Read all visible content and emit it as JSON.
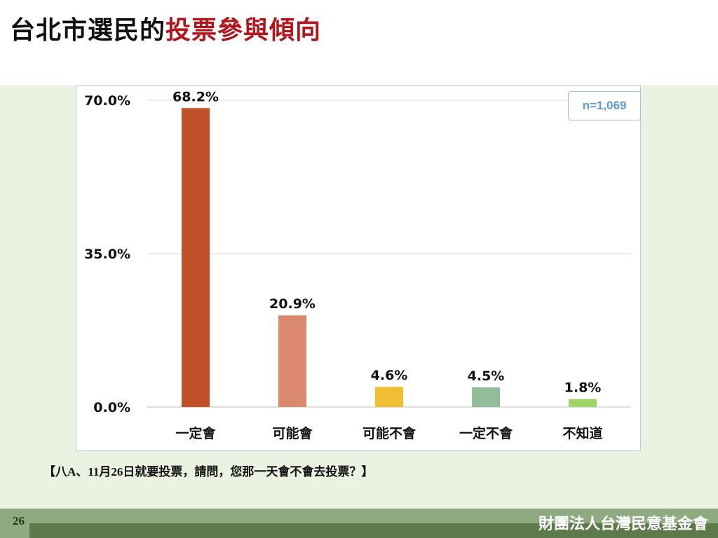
{
  "title": {
    "part1": "台北市選民的",
    "part2": "投票參與傾向"
  },
  "sample_size": "n=1,069",
  "question": "【八A、11月26日就要投票，請問，您那一天會不會去投票？】",
  "footer": {
    "page_number": "26",
    "organization": "財團法人台灣民意基金會"
  },
  "colors": {
    "title_accent": "#b0161c",
    "content_bg": "#eaf3e2",
    "footer_band": "#8faa80",
    "footer_dark": "#5c7a4a",
    "sample_box": "#5b9bd5"
  },
  "chart_data": {
    "type": "bar",
    "categories": [
      "一定會",
      "可能會",
      "可能不會",
      "一定不會",
      "不知道"
    ],
    "values": [
      68.2,
      20.9,
      4.6,
      4.5,
      1.8
    ],
    "value_labels": [
      "68.2%",
      "20.9%",
      "4.6%",
      "4.5%",
      "1.8%"
    ],
    "bar_colors": [
      "#c0502a",
      "#d98a6c",
      "#f0be32",
      "#92bd9b",
      "#9ed36a"
    ],
    "yticks": [
      "0.0%",
      "35.0%",
      "70.0%"
    ],
    "ytick_values": [
      0,
      35,
      70
    ],
    "ylim": [
      0,
      70
    ],
    "grid": true,
    "legend": "none",
    "xlabel": "",
    "ylabel": ""
  }
}
